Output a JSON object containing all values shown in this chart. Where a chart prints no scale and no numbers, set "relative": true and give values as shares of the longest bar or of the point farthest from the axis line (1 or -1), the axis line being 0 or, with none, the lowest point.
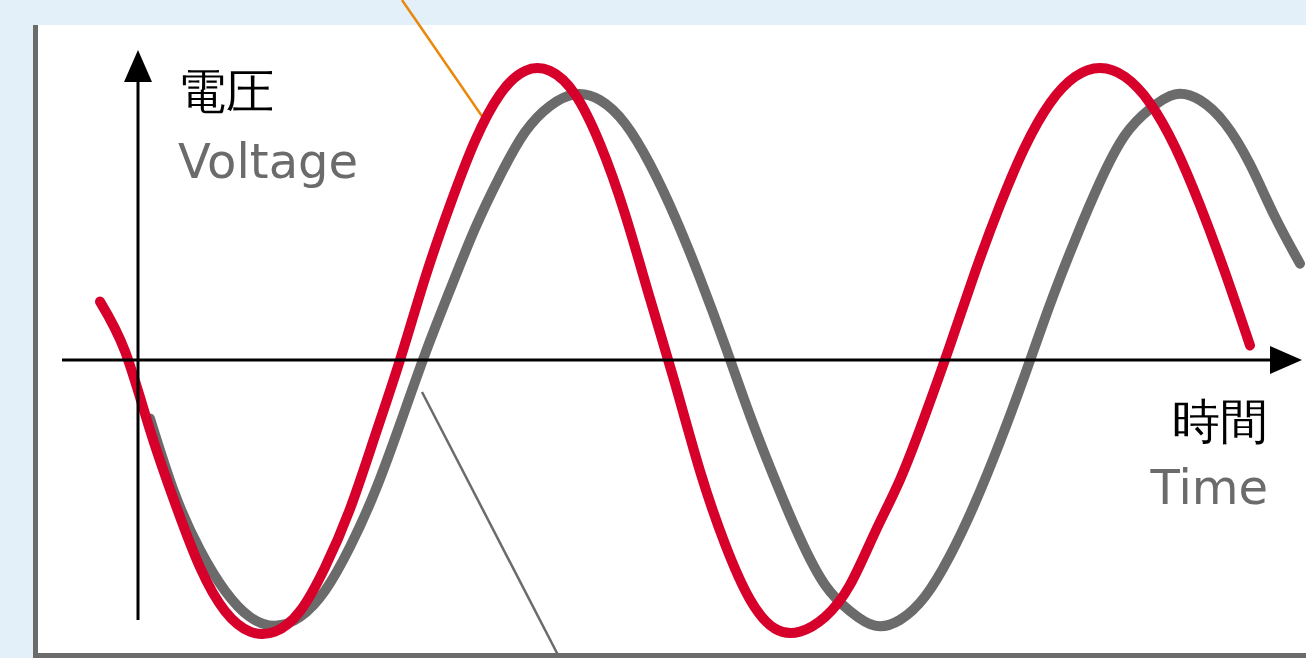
{
  "chart_data": {
    "type": "line",
    "relative": true,
    "ylabel": "電圧\nVoltage",
    "xlabel": "時間\nTime",
    "categories": [
      null,
      null,
      null,
      null,
      null,
      null,
      null,
      null,
      null,
      null,
      null,
      null,
      null,
      null,
      null,
      null,
      null,
      null,
      null,
      null,
      null,
      null,
      null,
      null,
      null,
      null,
      null,
      null,
      null,
      null,
      null,
      null,
      null,
      null,
      null,
      null,
      null,
      null,
      null,
      null,
      null,
      null,
      null,
      null,
      null,
      null,
      null,
      null,
      null
    ],
    "series": [
      {
        "color": "#6b6b6b",
        "values": [
          null,
          null,
          -0.2,
          -0.46,
          -0.65,
          -0.79,
          -0.88,
          -0.91,
          -0.88,
          -0.79,
          -0.64,
          -0.45,
          -0.22,
          0.02,
          0.24,
          0.45,
          0.63,
          0.78,
          0.87,
          0.91,
          0.89,
          0.81,
          0.67,
          0.49,
          0.28,
          0.05,
          -0.19,
          -0.41,
          -0.61,
          -0.77,
          -0.86,
          -0.91,
          -0.89,
          -0.81,
          -0.67,
          -0.49,
          -0.28,
          -0.05,
          0.19,
          0.41,
          0.61,
          0.77,
          0.86,
          0.91,
          0.89,
          0.81,
          0.67,
          0.49,
          0.33
        ]
      },
      {
        "color": "#d6002a",
        "values": [
          0.2,
          0.03,
          -0.24,
          -0.49,
          -0.71,
          -0.86,
          -0.93,
          -0.93,
          -0.86,
          -0.71,
          -0.51,
          -0.26,
          0,
          0.28,
          0.53,
          0.75,
          0.91,
          0.99,
          0.99,
          0.91,
          0.74,
          0.5,
          0.21,
          -0.08,
          -0.38,
          -0.63,
          -0.82,
          -0.92,
          -0.93,
          -0.88,
          -0.77,
          -0.59,
          -0.41,
          -0.19,
          0.05,
          0.3,
          0.53,
          0.73,
          0.88,
          0.97,
          1,
          0.97,
          0.88,
          0.73,
          0.53,
          0.3,
          0.05,
          null,
          null
        ]
      }
    ]
  }
}
